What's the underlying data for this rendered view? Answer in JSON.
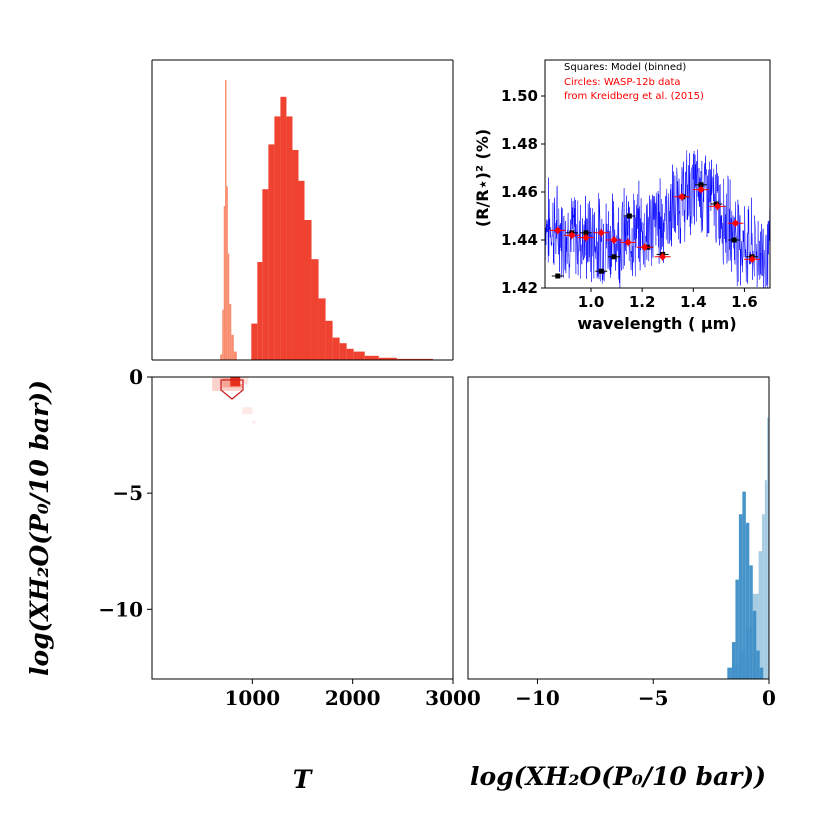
{
  "chart_data": [
    {
      "type": "bar",
      "panel": "top-left histogram",
      "xlim": [
        0,
        3000
      ],
      "ylim": [
        0,
        1
      ],
      "series": [
        {
          "color": "#fa8c6e",
          "bins": [
            [
              680,
              700,
              0.02
            ],
            [
              700,
              715,
              0.18
            ],
            [
              715,
              728,
              0.55
            ],
            [
              728,
              742,
              1.0
            ],
            [
              742,
              756,
              0.62
            ],
            [
              756,
              770,
              0.38
            ],
            [
              770,
              790,
              0.2
            ],
            [
              790,
              815,
              0.09
            ],
            [
              815,
              845,
              0.03
            ]
          ]
        },
        {
          "color": "#ef4230",
          "bins": [
            [
              990,
              1050,
              0.13
            ],
            [
              1050,
              1100,
              0.35
            ],
            [
              1100,
              1160,
              0.61
            ],
            [
              1160,
              1220,
              0.77
            ],
            [
              1220,
              1280,
              0.87
            ],
            [
              1280,
              1340,
              0.94
            ],
            [
              1340,
              1400,
              0.87
            ],
            [
              1400,
              1460,
              0.75
            ],
            [
              1460,
              1520,
              0.64
            ],
            [
              1520,
              1590,
              0.5
            ],
            [
              1590,
              1660,
              0.36
            ],
            [
              1660,
              1730,
              0.22
            ],
            [
              1730,
              1800,
              0.14
            ],
            [
              1800,
              1870,
              0.08
            ],
            [
              1870,
              1940,
              0.06
            ],
            [
              1940,
              2010,
              0.04
            ],
            [
              2010,
              2120,
              0.03
            ],
            [
              2120,
              2260,
              0.015
            ],
            [
              2260,
              2440,
              0.008
            ],
            [
              2440,
              2800,
              0.004
            ]
          ]
        }
      ]
    },
    {
      "type": "line",
      "panel": "inset spectrum",
      "xlabel": "wavelength ( μm)",
      "ylabel": "(R/R⋆)² (%)",
      "xlim": [
        0.82,
        1.7
      ],
      "ylim": [
        1.42,
        1.515
      ],
      "xticks": [
        "1.0",
        "1.2",
        "1.4",
        "1.6"
      ],
      "yticks": [
        "1.42",
        "1.44",
        "1.46",
        "1.48",
        "1.50"
      ],
      "model_color": "#0000ff",
      "model_trend": [
        [
          0.82,
          1.447
        ],
        [
          0.9,
          1.443
        ],
        [
          1.0,
          1.44
        ],
        [
          1.1,
          1.441
        ],
        [
          1.2,
          1.444
        ],
        [
          1.3,
          1.45
        ],
        [
          1.35,
          1.456
        ],
        [
          1.4,
          1.461
        ],
        [
          1.45,
          1.46
        ],
        [
          1.5,
          1.453
        ],
        [
          1.55,
          1.445
        ],
        [
          1.6,
          1.438
        ],
        [
          1.7,
          1.433
        ]
      ],
      "series": [
        {
          "name": "Squares: Model (binned)",
          "color": "#000000",
          "points": [
            [
              0.87,
              1.425
            ],
            [
              0.925,
              1.443
            ],
            [
              0.98,
              1.443
            ],
            [
              1.04,
              1.427
            ],
            [
              1.09,
              1.433
            ],
            [
              1.15,
              1.45
            ],
            [
              1.22,
              1.437
            ],
            [
              1.28,
              1.434
            ],
            [
              1.36,
              1.458
            ],
            [
              1.43,
              1.463
            ],
            [
              1.49,
              1.455
            ],
            [
              1.56,
              1.44
            ],
            [
              1.63,
              1.433
            ]
          ]
        },
        {
          "name": "Circles: WASP-12b data",
          "color": "#ff0000",
          "points": [
            [
              0.87,
              1.444
            ],
            [
              0.925,
              1.442
            ],
            [
              0.98,
              1.441
            ],
            [
              1.04,
              1.443
            ],
            [
              1.09,
              1.44
            ],
            [
              1.145,
              1.439
            ],
            [
              1.21,
              1.437
            ],
            [
              1.28,
              1.433
            ],
            [
              1.355,
              1.458
            ],
            [
              1.43,
              1.461
            ],
            [
              1.495,
              1.454
            ],
            [
              1.565,
              1.447
            ],
            [
              1.63,
              1.432
            ]
          ]
        }
      ],
      "legend": {
        "line1": "Squares: Model (binned)",
        "line2": "Circles: WASP-12b data",
        "line3": "from Kreidberg et al. (2015)"
      }
    },
    {
      "type": "heatmap",
      "panel": "bottom-left 2D posterior",
      "xlim": [
        0,
        3000
      ],
      "ylim": [
        -13,
        0
      ],
      "xticks": [
        "1000",
        "2000",
        "3000"
      ],
      "yticks": [
        "0",
        "−5",
        "−10"
      ],
      "contour_color": "#d02020"
    },
    {
      "type": "bar",
      "panel": "bottom-right histogram",
      "xlim": [
        -13,
        0
      ],
      "xticks": [
        "−10",
        "−5",
        "0"
      ],
      "series": [
        {
          "color": "#a6cce3",
          "bins": [
            [
              -1.6,
              -1.3,
              0.05
            ],
            [
              -1.3,
              -1.0,
              0.1
            ],
            [
              -1.0,
              -0.7,
              0.18
            ],
            [
              -0.7,
              -0.45,
              0.3
            ],
            [
              -0.45,
              -0.3,
              0.45
            ],
            [
              -0.3,
              -0.18,
              0.58
            ],
            [
              -0.18,
              -0.08,
              0.7
            ],
            [
              -0.08,
              0.0,
              0.92
            ]
          ]
        },
        {
          "color": "#3c8ec7",
          "bins": [
            [
              -1.8,
              -1.6,
              0.04
            ],
            [
              -1.6,
              -1.45,
              0.13
            ],
            [
              -1.45,
              -1.3,
              0.35
            ],
            [
              -1.3,
              -1.15,
              0.58
            ],
            [
              -1.15,
              -1.0,
              0.66
            ],
            [
              -1.0,
              -0.85,
              0.55
            ],
            [
              -0.85,
              -0.7,
              0.4
            ],
            [
              -0.7,
              -0.55,
              0.24
            ],
            [
              -0.55,
              -0.4,
              0.1
            ],
            [
              -0.4,
              -0.25,
              0.04
            ]
          ]
        }
      ]
    }
  ],
  "labels": {
    "x_left": "T",
    "x_right": "log(XH₂O(P₀/10 bar))",
    "y_left": "log(XH₂O(P₀/10 bar))"
  }
}
